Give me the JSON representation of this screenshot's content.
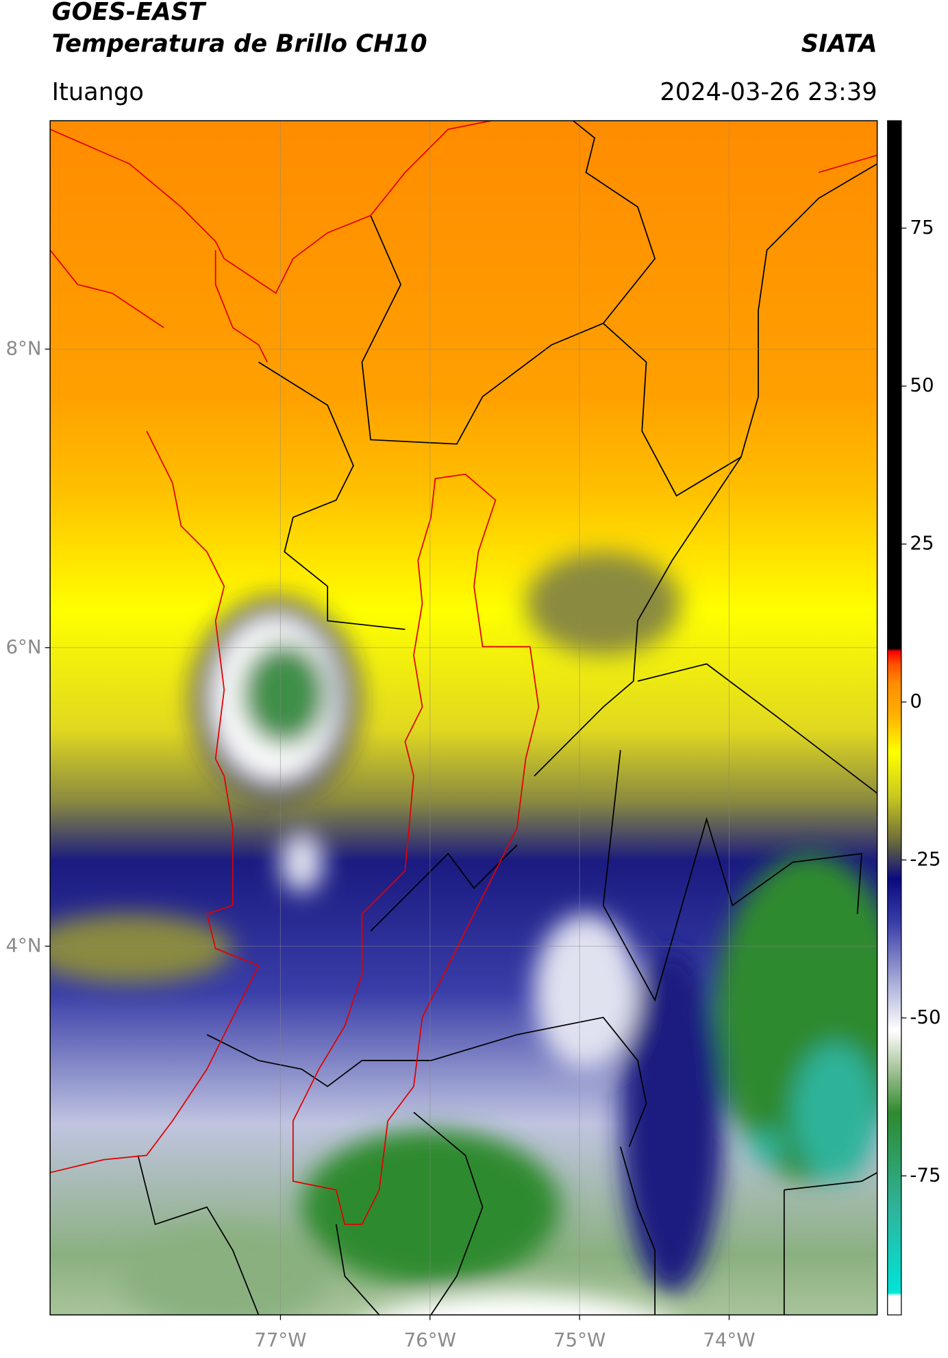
{
  "header": {
    "satellite": "GOES-EAST",
    "product": "Temperatura de Brillo CH10",
    "source": "SIATA",
    "location": "Ituango",
    "datetime": "2024-03-26 23:39"
  },
  "chart_data": {
    "type": "map",
    "xlim": [
      -78.54,
      -73.01
    ],
    "ylim": [
      1.53,
      9.53
    ],
    "xticks": [
      {
        "value": -77,
        "label": "77°W"
      },
      {
        "value": -76,
        "label": "76°W"
      },
      {
        "value": -75,
        "label": "75°W"
      },
      {
        "value": -74,
        "label": "74°W"
      }
    ],
    "yticks": [
      {
        "value": 4,
        "label": "4°N"
      },
      {
        "value": 6,
        "label": "6°N"
      },
      {
        "value": 8,
        "label": "8°N"
      }
    ],
    "grid": true,
    "colorbar": {
      "lim": [
        -97,
        92
      ],
      "ticks": [
        -75,
        -50,
        -25,
        0,
        25,
        50,
        75
      ],
      "stops": [
        {
          "value": -97,
          "color": "#ffffff"
        },
        {
          "value": -94,
          "color": "#ffffff"
        },
        {
          "value": -93.5,
          "color": "#00e5d8"
        },
        {
          "value": -80,
          "color": "#2fb39a"
        },
        {
          "value": -65,
          "color": "#2e8a2e"
        },
        {
          "value": -58,
          "color": "#a8c49a"
        },
        {
          "value": -52,
          "color": "#ffffff"
        },
        {
          "value": -45,
          "color": "#b0b4dc"
        },
        {
          "value": -35,
          "color": "#3a3ea8"
        },
        {
          "value": -28,
          "color": "#0a0a80"
        },
        {
          "value": -22,
          "color": "#6b6b3a"
        },
        {
          "value": -15,
          "color": "#c8c820"
        },
        {
          "value": -8,
          "color": "#ffff00"
        },
        {
          "value": -2,
          "color": "#ffb000"
        },
        {
          "value": 3,
          "color": "#ff8c00"
        },
        {
          "value": 6,
          "color": "#ff5000"
        },
        {
          "value": 8,
          "color": "#ff0000"
        },
        {
          "value": 8.5,
          "color": "#000000"
        },
        {
          "value": 92,
          "color": "#000000"
        }
      ]
    }
  }
}
